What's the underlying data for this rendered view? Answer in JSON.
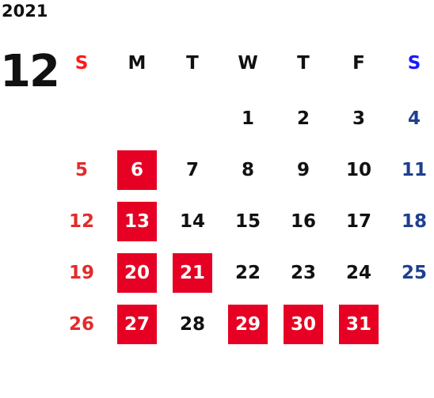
{
  "calendar": {
    "year": "2021",
    "month": "12",
    "weekdays": [
      "S",
      "M",
      "T",
      "W",
      "T",
      "F",
      "S"
    ],
    "weeks": [
      [
        null,
        null,
        null,
        "1",
        "2",
        "3",
        "4"
      ],
      [
        "5",
        "6",
        "7",
        "8",
        "9",
        "10",
        "11"
      ],
      [
        "12",
        "13",
        "14",
        "15",
        "16",
        "17",
        "18"
      ],
      [
        "19",
        "20",
        "21",
        "22",
        "23",
        "24",
        "25"
      ],
      [
        "26",
        "27",
        "28",
        "29",
        "30",
        "31",
        null
      ]
    ],
    "highlighted_days": [
      "6",
      "13",
      "20",
      "21",
      "27",
      "29",
      "30",
      "31"
    ],
    "colors": {
      "sunday": "#e32b2b",
      "saturday": "#1f3f8f",
      "sunday_header": "#ff1a1a",
      "saturday_header": "#1a1aff",
      "highlight": "#e60023"
    }
  }
}
